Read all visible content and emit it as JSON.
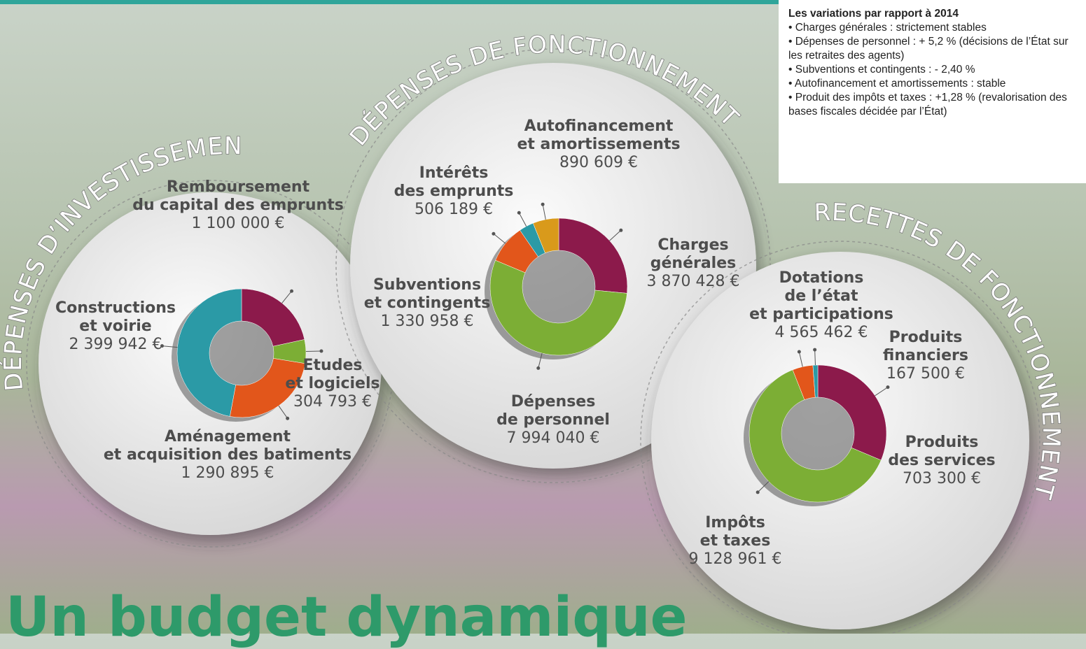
{
  "heading": "Un budget dynamique",
  "notes": {
    "title": "Les variations par rapport à 2014",
    "items": [
      "• Charges générales : strictement stables",
      "• Dépenses de personnel : + 5,2 % (décisions de l’État sur les retraites des agents)",
      "• Subventions et contingents : - 2,40 %",
      "• Autofinancement et amortissements : stable",
      "• Produit des impôts et taxes : +1,28 % (revalorisation des bases fiscales décidée par l’État)"
    ]
  },
  "chart_data": [
    {
      "type": "donut",
      "title": "DÉPENSES D’INVESTISSEMENT",
      "categories": [
        "Remboursement\ndu capital des emprunts",
        "Etudes\net logiciels",
        "Aménagement\net acquisition des batiments",
        "Constructions\net voirie"
      ],
      "values": [
        1100000,
        304793,
        1290895,
        2399942
      ],
      "value_labels": [
        "1 100 000 €",
        "304 793 €",
        "1 290 895 €",
        "2 399 942 €"
      ],
      "colors": [
        "#8c1a4b",
        "#7cae35",
        "#e2561b",
        "#2b9aa6"
      ]
    },
    {
      "type": "donut",
      "title": "DÉPENSES DE FONCTIONNEMENT",
      "categories": [
        "Charges\ngénérales",
        "Dépenses\nde personnel",
        "Subventions\net contingents",
        "Intérêts\ndes emprunts",
        "Autofinancement\net amortissements"
      ],
      "values": [
        3870428,
        7994040,
        1330958,
        506189,
        890609
      ],
      "value_labels": [
        "3 870 428 €",
        "7 994 040 €",
        "1 330 958 €",
        "506 189 €",
        "890 609 €"
      ],
      "colors": [
        "#8c1a4b",
        "#7cae35",
        "#e2561b",
        "#2b9aa6",
        "#d99a1b"
      ]
    },
    {
      "type": "donut",
      "title": "RECETTES DE FONCTIONNEMENT",
      "categories": [
        "Dotations\nde l’état\net participations",
        "Impôts\net taxes",
        "Produits\ndes services",
        "Produits\nfinanciers"
      ],
      "values": [
        4565462,
        9128961,
        703300,
        167500
      ],
      "value_labels": [
        "4 565 462 €",
        "9 128 961 €",
        "703 300 €",
        "167 500 €"
      ],
      "colors": [
        "#8c1a4b",
        "#7cae35",
        "#e2561b",
        "#2b9aa6"
      ]
    }
  ]
}
